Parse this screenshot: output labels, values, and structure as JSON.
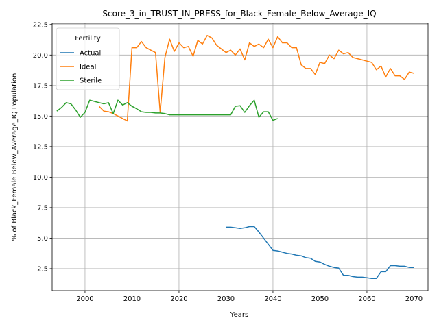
{
  "chart_data": {
    "type": "line",
    "title": "Score_3_in_TRUST_IN_PRESS_for_Black_Female_Below_Average_IQ",
    "xlabel": "Years",
    "ylabel": "% of Black_Female Below_Average_IQ Population",
    "xlim": [
      1993,
      2073
    ],
    "ylim": [
      0.7,
      22.6
    ],
    "xticks": [
      2000,
      2010,
      2020,
      2030,
      2040,
      2050,
      2060,
      2070
    ],
    "yticks": [
      2.5,
      5.0,
      7.5,
      10.0,
      12.5,
      15.0,
      17.5,
      20.0,
      22.5
    ],
    "xtick_labels": [
      "2000",
      "2010",
      "2020",
      "2030",
      "2040",
      "2050",
      "2060",
      "2070"
    ],
    "ytick_labels": [
      "2.5",
      "5.0",
      "7.5",
      "10.0",
      "12.5",
      "15.0",
      "17.5",
      "20.0",
      "22.5"
    ],
    "grid": true,
    "legend": {
      "title": "Fertility",
      "position": "upper-left"
    },
    "series": [
      {
        "name": "Actual",
        "color": "#1f77b4",
        "x": [
          2030,
          2031,
          2032,
          2033,
          2034,
          2035,
          2036,
          2037,
          2038,
          2039,
          2040,
          2041,
          2042,
          2043,
          2044,
          2045,
          2046,
          2047,
          2048,
          2049,
          2050,
          2051,
          2052,
          2053,
          2054,
          2055,
          2056,
          2057,
          2058,
          2059,
          2060,
          2061,
          2062,
          2063,
          2064,
          2065,
          2066,
          2067,
          2068,
          2069,
          2070
        ],
        "y": [
          5.9,
          5.9,
          5.85,
          5.8,
          5.85,
          5.95,
          5.95,
          5.5,
          5.0,
          4.5,
          4.0,
          3.95,
          3.85,
          3.75,
          3.7,
          3.6,
          3.55,
          3.4,
          3.35,
          3.1,
          3.05,
          2.85,
          2.7,
          2.6,
          2.55,
          1.95,
          1.95,
          1.85,
          1.8,
          1.8,
          1.75,
          1.7,
          1.7,
          2.25,
          2.25,
          2.75,
          2.75,
          2.7,
          2.7,
          2.6,
          2.6
        ]
      },
      {
        "name": "Ideal",
        "color": "#ff7f0e",
        "x": [
          2003,
          2004,
          2005,
          2006,
          2007,
          2008,
          2009,
          2010,
          2011,
          2012,
          2013,
          2014,
          2015,
          2016,
          2017,
          2018,
          2019,
          2020,
          2021,
          2022,
          2023,
          2024,
          2025,
          2026,
          2027,
          2028,
          2029,
          2030,
          2031,
          2032,
          2033,
          2034,
          2035,
          2036,
          2037,
          2038,
          2039,
          2040,
          2041,
          2042,
          2043,
          2044,
          2045,
          2046,
          2047,
          2048,
          2049,
          2050,
          2051,
          2052,
          2053,
          2054,
          2055,
          2056,
          2057,
          2058,
          2059,
          2060,
          2061,
          2062,
          2063,
          2064,
          2065,
          2066,
          2067,
          2068,
          2069,
          2070
        ],
        "y": [
          15.8,
          15.4,
          15.35,
          15.2,
          15.0,
          14.8,
          14.6,
          20.6,
          20.6,
          21.1,
          20.6,
          20.4,
          20.2,
          15.3,
          19.8,
          21.3,
          20.3,
          21.0,
          20.6,
          20.7,
          19.9,
          21.2,
          20.9,
          21.6,
          21.4,
          20.8,
          20.5,
          20.2,
          20.4,
          20.0,
          20.5,
          19.6,
          21.0,
          20.7,
          20.9,
          20.6,
          21.3,
          20.6,
          21.5,
          21.0,
          21.0,
          20.6,
          20.6,
          19.2,
          18.9,
          18.9,
          18.4,
          19.4,
          19.3,
          20.0,
          19.7,
          20.4,
          20.1,
          20.2,
          19.8,
          19.7,
          19.6,
          19.5,
          19.4,
          18.8,
          19.1,
          18.2,
          18.9,
          18.3,
          18.3,
          18.0,
          18.6,
          18.5
        ]
      },
      {
        "name": "Sterile",
        "color": "#2ca02c",
        "x": [
          1994,
          1995,
          1996,
          1997,
          1998,
          1999,
          2000,
          2001,
          2002,
          2003,
          2004,
          2005,
          2006,
          2007,
          2008,
          2009,
          2010,
          2011,
          2012,
          2013,
          2014,
          2015,
          2016,
          2017,
          2018,
          2019,
          2020,
          2021,
          2022,
          2023,
          2024,
          2025,
          2026,
          2027,
          2028,
          2029,
          2030,
          2031,
          2032,
          2033,
          2034,
          2035,
          2036,
          2037,
          2038,
          2039,
          2040,
          2041
        ],
        "y": [
          15.4,
          15.7,
          16.1,
          16.0,
          15.5,
          14.9,
          15.3,
          16.3,
          16.2,
          16.1,
          16.0,
          16.1,
          15.2,
          16.3,
          15.9,
          16.1,
          15.8,
          15.6,
          15.35,
          15.3,
          15.3,
          15.25,
          15.25,
          15.2,
          15.1,
          15.1,
          15.1,
          15.1,
          15.1,
          15.1,
          15.1,
          15.1,
          15.1,
          15.1,
          15.1,
          15.1,
          15.1,
          15.1,
          15.8,
          15.85,
          15.3,
          15.85,
          16.3,
          14.9,
          15.35,
          15.35,
          14.65,
          14.8
        ]
      }
    ]
  }
}
